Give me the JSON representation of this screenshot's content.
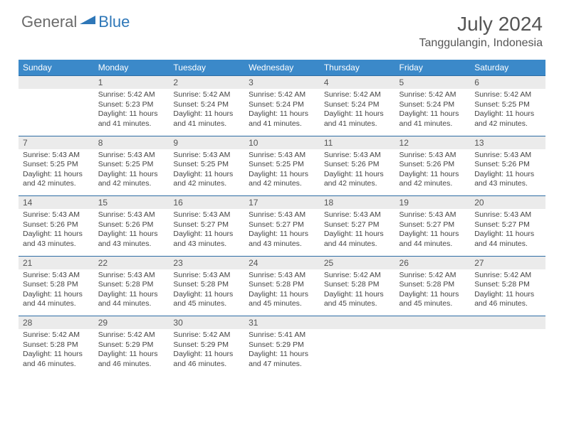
{
  "logo": {
    "text1": "General",
    "text2": "Blue"
  },
  "title": "July 2024",
  "location": "Tanggulangin, Indonesia",
  "colors": {
    "header_bg": "#3b89c9",
    "header_text": "#ffffff",
    "daynum_bg": "#ebebeb",
    "border": "#2e6da4",
    "logo_gray": "#6a6a6a",
    "logo_blue": "#2e77b8"
  },
  "weekdays": [
    "Sunday",
    "Monday",
    "Tuesday",
    "Wednesday",
    "Thursday",
    "Friday",
    "Saturday"
  ],
  "weeks": [
    {
      "nums": [
        "",
        "1",
        "2",
        "3",
        "4",
        "5",
        "6"
      ],
      "cells": [
        null,
        {
          "sr": "5:42 AM",
          "ss": "5:23 PM",
          "d1": "11 hours",
          "d2": "and 41 minutes."
        },
        {
          "sr": "5:42 AM",
          "ss": "5:24 PM",
          "d1": "11 hours",
          "d2": "and 41 minutes."
        },
        {
          "sr": "5:42 AM",
          "ss": "5:24 PM",
          "d1": "11 hours",
          "d2": "and 41 minutes."
        },
        {
          "sr": "5:42 AM",
          "ss": "5:24 PM",
          "d1": "11 hours",
          "d2": "and 41 minutes."
        },
        {
          "sr": "5:42 AM",
          "ss": "5:24 PM",
          "d1": "11 hours",
          "d2": "and 41 minutes."
        },
        {
          "sr": "5:42 AM",
          "ss": "5:25 PM",
          "d1": "11 hours",
          "d2": "and 42 minutes."
        }
      ]
    },
    {
      "nums": [
        "7",
        "8",
        "9",
        "10",
        "11",
        "12",
        "13"
      ],
      "cells": [
        {
          "sr": "5:43 AM",
          "ss": "5:25 PM",
          "d1": "11 hours",
          "d2": "and 42 minutes."
        },
        {
          "sr": "5:43 AM",
          "ss": "5:25 PM",
          "d1": "11 hours",
          "d2": "and 42 minutes."
        },
        {
          "sr": "5:43 AM",
          "ss": "5:25 PM",
          "d1": "11 hours",
          "d2": "and 42 minutes."
        },
        {
          "sr": "5:43 AM",
          "ss": "5:25 PM",
          "d1": "11 hours",
          "d2": "and 42 minutes."
        },
        {
          "sr": "5:43 AM",
          "ss": "5:26 PM",
          "d1": "11 hours",
          "d2": "and 42 minutes."
        },
        {
          "sr": "5:43 AM",
          "ss": "5:26 PM",
          "d1": "11 hours",
          "d2": "and 42 minutes."
        },
        {
          "sr": "5:43 AM",
          "ss": "5:26 PM",
          "d1": "11 hours",
          "d2": "and 43 minutes."
        }
      ]
    },
    {
      "nums": [
        "14",
        "15",
        "16",
        "17",
        "18",
        "19",
        "20"
      ],
      "cells": [
        {
          "sr": "5:43 AM",
          "ss": "5:26 PM",
          "d1": "11 hours",
          "d2": "and 43 minutes."
        },
        {
          "sr": "5:43 AM",
          "ss": "5:26 PM",
          "d1": "11 hours",
          "d2": "and 43 minutes."
        },
        {
          "sr": "5:43 AM",
          "ss": "5:27 PM",
          "d1": "11 hours",
          "d2": "and 43 minutes."
        },
        {
          "sr": "5:43 AM",
          "ss": "5:27 PM",
          "d1": "11 hours",
          "d2": "and 43 minutes."
        },
        {
          "sr": "5:43 AM",
          "ss": "5:27 PM",
          "d1": "11 hours",
          "d2": "and 44 minutes."
        },
        {
          "sr": "5:43 AM",
          "ss": "5:27 PM",
          "d1": "11 hours",
          "d2": "and 44 minutes."
        },
        {
          "sr": "5:43 AM",
          "ss": "5:27 PM",
          "d1": "11 hours",
          "d2": "and 44 minutes."
        }
      ]
    },
    {
      "nums": [
        "21",
        "22",
        "23",
        "24",
        "25",
        "26",
        "27"
      ],
      "cells": [
        {
          "sr": "5:43 AM",
          "ss": "5:28 PM",
          "d1": "11 hours",
          "d2": "and 44 minutes."
        },
        {
          "sr": "5:43 AM",
          "ss": "5:28 PM",
          "d1": "11 hours",
          "d2": "and 44 minutes."
        },
        {
          "sr": "5:43 AM",
          "ss": "5:28 PM",
          "d1": "11 hours",
          "d2": "and 45 minutes."
        },
        {
          "sr": "5:43 AM",
          "ss": "5:28 PM",
          "d1": "11 hours",
          "d2": "and 45 minutes."
        },
        {
          "sr": "5:42 AM",
          "ss": "5:28 PM",
          "d1": "11 hours",
          "d2": "and 45 minutes."
        },
        {
          "sr": "5:42 AM",
          "ss": "5:28 PM",
          "d1": "11 hours",
          "d2": "and 45 minutes."
        },
        {
          "sr": "5:42 AM",
          "ss": "5:28 PM",
          "d1": "11 hours",
          "d2": "and 46 minutes."
        }
      ]
    },
    {
      "nums": [
        "28",
        "29",
        "30",
        "31",
        "",
        "",
        ""
      ],
      "cells": [
        {
          "sr": "5:42 AM",
          "ss": "5:28 PM",
          "d1": "11 hours",
          "d2": "and 46 minutes."
        },
        {
          "sr": "5:42 AM",
          "ss": "5:29 PM",
          "d1": "11 hours",
          "d2": "and 46 minutes."
        },
        {
          "sr": "5:42 AM",
          "ss": "5:29 PM",
          "d1": "11 hours",
          "d2": "and 46 minutes."
        },
        {
          "sr": "5:41 AM",
          "ss": "5:29 PM",
          "d1": "11 hours",
          "d2": "and 47 minutes."
        },
        null,
        null,
        null
      ]
    }
  ],
  "labels": {
    "sunrise": "Sunrise:",
    "sunset": "Sunset:",
    "daylight": "Daylight:"
  }
}
